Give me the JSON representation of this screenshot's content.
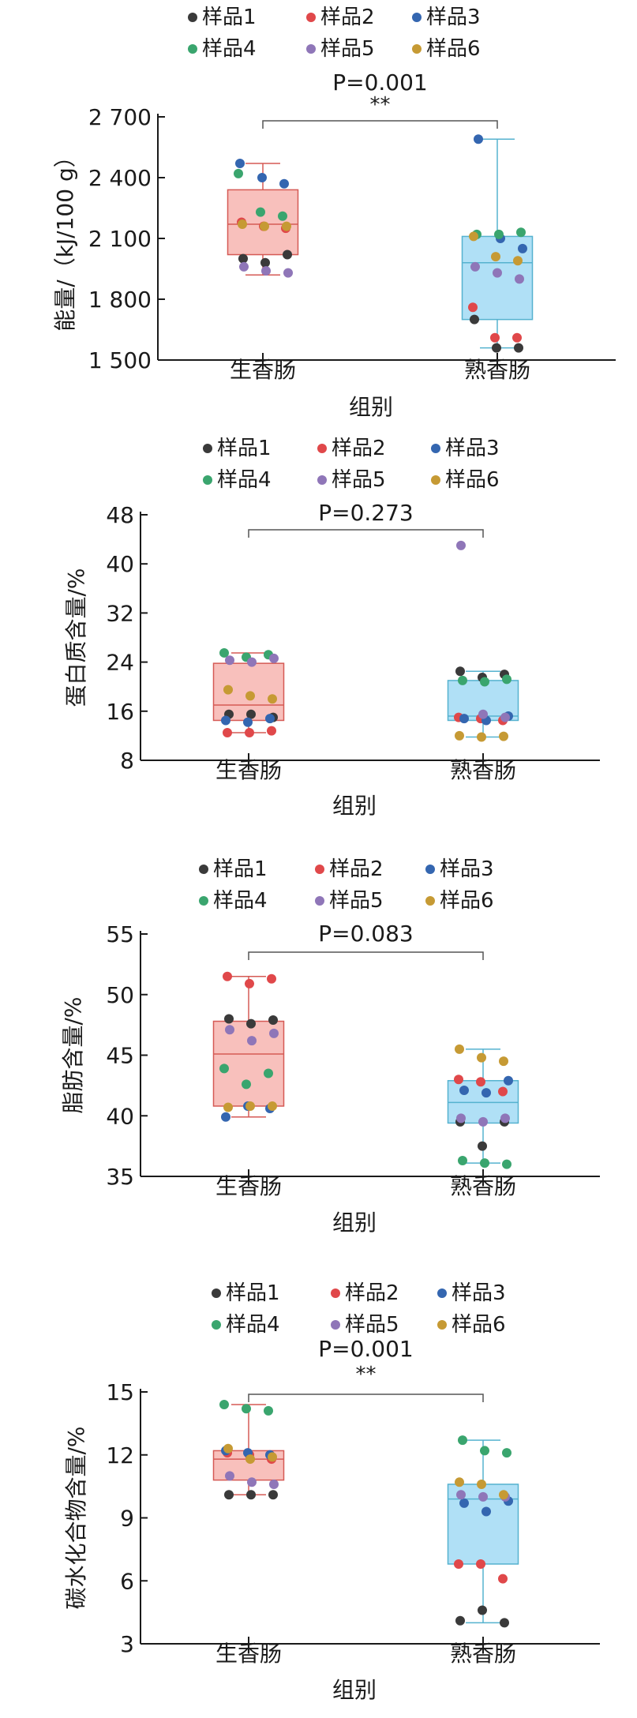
{
  "chart_data": [
    {
      "type": "box",
      "legend": [
        "样品1",
        "样品2",
        "样品3",
        "样品4",
        "样品5",
        "样品6"
      ],
      "pvalue_label": "P=0.001",
      "significance": "**",
      "categories": [
        "生香肠",
        "熟香肠"
      ],
      "xlabel": "组别",
      "ylabel": "能量/（kJ/100 g）",
      "ylim": [
        1500,
        2700
      ],
      "yticks": [
        1500,
        1800,
        2100,
        2400,
        2700
      ],
      "ytick_labels": [
        "1 500",
        "1 800",
        "2 100",
        "2 400",
        "2 700"
      ],
      "boxes": [
        {
          "min": 1920,
          "q1": 2020,
          "median": 2170,
          "q3": 2340,
          "max": 2470
        },
        {
          "min": 1560,
          "q1": 1700,
          "median": 1980,
          "q3": 2110,
          "max": 2590
        }
      ],
      "points": [
        [
          [
            1,
            2000
          ],
          [
            1,
            1980
          ],
          [
            1,
            2020
          ],
          [
            2,
            2180
          ],
          [
            2,
            2160
          ],
          [
            2,
            2150
          ],
          [
            3,
            2470
          ],
          [
            3,
            2400
          ],
          [
            3,
            2370
          ],
          [
            4,
            2420
          ],
          [
            4,
            2230
          ],
          [
            4,
            2210
          ],
          [
            5,
            1960
          ],
          [
            5,
            1940
          ],
          [
            5,
            1930
          ],
          [
            6,
            2170
          ],
          [
            6,
            2160
          ],
          [
            6,
            2160
          ]
        ],
        [
          [
            1,
            1700
          ],
          [
            1,
            1560
          ],
          [
            1,
            1560
          ],
          [
            2,
            1760
          ],
          [
            2,
            1610
          ],
          [
            2,
            1610
          ],
          [
            3,
            2590
          ],
          [
            3,
            2100
          ],
          [
            3,
            2050
          ],
          [
            4,
            2120
          ],
          [
            4,
            2120
          ],
          [
            4,
            2130
          ],
          [
            5,
            1960
          ],
          [
            5,
            1930
          ],
          [
            5,
            1900
          ],
          [
            6,
            2110
          ],
          [
            6,
            2010
          ],
          [
            6,
            1990
          ]
        ]
      ]
    },
    {
      "type": "box",
      "legend": [
        "样品1",
        "样品2",
        "样品3",
        "样品4",
        "样品5",
        "样品6"
      ],
      "pvalue_label": "P=0.273",
      "significance": "",
      "categories": [
        "生香肠",
        "熟香肠"
      ],
      "xlabel": "组别",
      "ylabel": "蛋白质含量/%",
      "ylim": [
        8,
        48
      ],
      "yticks": [
        8,
        16,
        24,
        32,
        40,
        48
      ],
      "ytick_labels": [
        "8",
        "16",
        "24",
        "32",
        "40",
        "48"
      ],
      "boxes": [
        {
          "min": 12.5,
          "q1": 14.5,
          "median": 17.0,
          "q3": 23.8,
          "max": 25.5
        },
        {
          "min": 11.8,
          "q1": 14.5,
          "median": 15.2,
          "q3": 21.0,
          "max": 22.5
        }
      ],
      "points": [
        [
          [
            1,
            15.5
          ],
          [
            1,
            15.5
          ],
          [
            1,
            15.0
          ],
          [
            2,
            12.5
          ],
          [
            2,
            12.5
          ],
          [
            2,
            12.8
          ],
          [
            3,
            14.5
          ],
          [
            3,
            14.2
          ],
          [
            3,
            14.8
          ],
          [
            4,
            25.5
          ],
          [
            4,
            24.8
          ],
          [
            4,
            25.2
          ],
          [
            5,
            24.3
          ],
          [
            5,
            24.0
          ],
          [
            5,
            24.6
          ],
          [
            6,
            19.5
          ],
          [
            6,
            18.5
          ],
          [
            6,
            18.0
          ]
        ],
        [
          [
            1,
            22.5
          ],
          [
            1,
            21.5
          ],
          [
            1,
            22.0
          ],
          [
            2,
            15.0
          ],
          [
            2,
            14.8
          ],
          [
            2,
            14.5
          ],
          [
            3,
            14.8
          ],
          [
            3,
            14.5
          ],
          [
            3,
            15.2
          ],
          [
            4,
            21.0
          ],
          [
            4,
            20.8
          ],
          [
            4,
            21.2
          ],
          [
            5,
            43.0
          ],
          [
            5,
            15.5
          ],
          [
            5,
            15.0
          ],
          [
            6,
            12.0
          ],
          [
            6,
            11.8
          ],
          [
            6,
            11.9
          ]
        ]
      ]
    },
    {
      "type": "box",
      "legend": [
        "样品1",
        "样品2",
        "样品3",
        "样品4",
        "样品5",
        "样品6"
      ],
      "pvalue_label": "P=0.083",
      "significance": "",
      "categories": [
        "生香肠",
        "熟香肠"
      ],
      "xlabel": "组别",
      "ylabel": "脂肪含量/%",
      "ylim": [
        35,
        55
      ],
      "yticks": [
        35,
        40,
        45,
        50,
        55
      ],
      "ytick_labels": [
        "35",
        "40",
        "45",
        "50",
        "55"
      ],
      "boxes": [
        {
          "min": 39.9,
          "q1": 40.8,
          "median": 45.1,
          "q3": 47.8,
          "max": 51.5
        },
        {
          "min": 36.1,
          "q1": 39.4,
          "median": 41.1,
          "q3": 42.9,
          "max": 45.5
        }
      ],
      "points": [
        [
          [
            1,
            48.0
          ],
          [
            1,
            47.6
          ],
          [
            1,
            47.9
          ],
          [
            2,
            51.5
          ],
          [
            2,
            50.9
          ],
          [
            2,
            51.3
          ],
          [
            3,
            39.9
          ],
          [
            3,
            40.8
          ],
          [
            3,
            40.6
          ],
          [
            4,
            43.9
          ],
          [
            4,
            42.6
          ],
          [
            4,
            43.5
          ],
          [
            5,
            47.1
          ],
          [
            5,
            46.2
          ],
          [
            5,
            46.8
          ],
          [
            6,
            40.7
          ],
          [
            6,
            40.8
          ],
          [
            6,
            40.8
          ]
        ],
        [
          [
            1,
            39.5
          ],
          [
            1,
            37.5
          ],
          [
            1,
            39.5
          ],
          [
            2,
            43.0
          ],
          [
            2,
            42.8
          ],
          [
            2,
            42.0
          ],
          [
            3,
            42.1
          ],
          [
            3,
            41.9
          ],
          [
            3,
            42.9
          ],
          [
            4,
            36.3
          ],
          [
            4,
            36.1
          ],
          [
            4,
            36.0
          ],
          [
            5,
            39.8
          ],
          [
            5,
            39.5
          ],
          [
            5,
            39.8
          ],
          [
            6,
            45.5
          ],
          [
            6,
            44.8
          ],
          [
            6,
            44.5
          ]
        ]
      ]
    },
    {
      "type": "box",
      "legend": [
        "样品1",
        "样品2",
        "样品3",
        "样品4",
        "样品5",
        "样品6"
      ],
      "pvalue_label": "P=0.001",
      "significance": "**",
      "categories": [
        "生香肠",
        "熟香肠"
      ],
      "xlabel": "组别",
      "ylabel": "碳水化合物含量/%",
      "ylim": [
        3,
        15
      ],
      "yticks": [
        3,
        6,
        9,
        12,
        15
      ],
      "ytick_labels": [
        "3",
        "6",
        "9",
        "12",
        "15"
      ],
      "boxes": [
        {
          "min": 10.1,
          "q1": 10.8,
          "median": 11.8,
          "q3": 12.2,
          "max": 14.4
        },
        {
          "min": 4.0,
          "q1": 6.8,
          "median": 9.9,
          "q3": 10.6,
          "max": 12.7
        }
      ],
      "points": [
        [
          [
            1,
            10.1
          ],
          [
            1,
            10.1
          ],
          [
            1,
            10.1
          ],
          [
            2,
            12.1
          ],
          [
            2,
            12.0
          ],
          [
            2,
            11.8
          ],
          [
            3,
            12.2
          ],
          [
            3,
            12.1
          ],
          [
            3,
            12.0
          ],
          [
            4,
            14.4
          ],
          [
            4,
            14.2
          ],
          [
            4,
            14.1
          ],
          [
            5,
            11.0
          ],
          [
            5,
            10.7
          ],
          [
            5,
            10.6
          ],
          [
            6,
            12.3
          ],
          [
            6,
            11.8
          ],
          [
            6,
            11.9
          ]
        ],
        [
          [
            1,
            4.1
          ],
          [
            1,
            4.6
          ],
          [
            1,
            4.0
          ],
          [
            2,
            6.8
          ],
          [
            2,
            6.8
          ],
          [
            2,
            6.1
          ],
          [
            3,
            9.7
          ],
          [
            3,
            9.3
          ],
          [
            3,
            9.8
          ],
          [
            4,
            12.7
          ],
          [
            4,
            12.2
          ],
          [
            4,
            12.1
          ],
          [
            5,
            10.1
          ],
          [
            5,
            10.0
          ],
          [
            5,
            10.0
          ],
          [
            6,
            10.7
          ],
          [
            6,
            10.6
          ],
          [
            6,
            10.1
          ]
        ]
      ]
    }
  ],
  "colors": {
    "samples": [
      "#3a3a3a",
      "#e0484a",
      "#3466b0",
      "#3aa56e",
      "#8f76b8",
      "#c69a34"
    ],
    "raw_fill": "#f8c0bc",
    "raw_stroke": "#d55a55",
    "cooked_fill": "#b0e0f6",
    "cooked_stroke": "#55b2cf",
    "axis": "#1a1a1a",
    "bracket": "#555555"
  }
}
